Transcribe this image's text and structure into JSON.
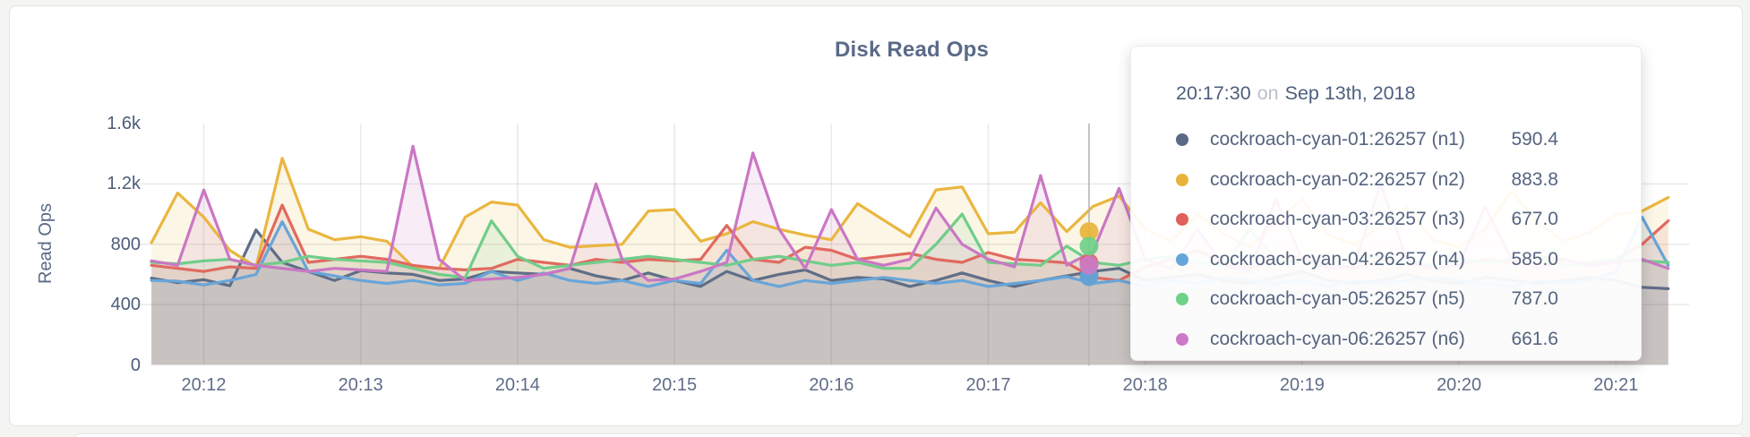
{
  "page": {
    "background": "#f4f4f2",
    "card_background": "#ffffff"
  },
  "chart_data": {
    "type": "line",
    "title": "Disk Read Ops",
    "xlabel": "",
    "ylabel": "Read Ops",
    "ylim": [
      0,
      1600
    ],
    "grid": true,
    "legend_position": "tooltip-only",
    "x_start": "20:11:40",
    "x_interval_seconds": 10,
    "x_tick_labels": [
      "20:12",
      "20:13",
      "20:14",
      "20:15",
      "20:16",
      "20:17",
      "20:18",
      "20:19",
      "20:20",
      "20:21"
    ],
    "y_ticks": [
      {
        "label": "1.6k",
        "value": 1600
      },
      {
        "label": "1.2k",
        "value": 1200
      },
      {
        "label": "800",
        "value": 800
      },
      {
        "label": "400",
        "value": 400
      },
      {
        "label": "0",
        "value": 0
      }
    ],
    "series": [
      {
        "name": "cockroach-cyan-01:26257 (n1)",
        "color": "#5f6e87",
        "values": [
          575,
          545,
          565,
          525,
          895,
          680,
          620,
          560,
          625,
          610,
          600,
          560,
          570,
          620,
          610,
          600,
          640,
          590,
          560,
          610,
          560,
          520,
          620,
          560,
          600,
          630,
          560,
          580,
          570,
          520,
          560,
          610,
          560,
          520,
          560,
          590.4,
          620,
          640,
          560,
          580,
          600,
          560,
          540,
          580,
          620,
          560,
          540,
          560,
          600,
          560,
          540,
          580,
          560,
          540,
          560,
          580,
          560,
          515,
          505
        ]
      },
      {
        "name": "cockroach-cyan-02:26257 (n2)",
        "color": "#eab63f",
        "values": [
          810,
          1140,
          980,
          760,
          650,
          1370,
          900,
          830,
          850,
          820,
          650,
          640,
          980,
          1080,
          1060,
          830,
          780,
          790,
          800,
          1020,
          1030,
          820,
          870,
          950,
          900,
          860,
          830,
          1070,
          960,
          850,
          1160,
          1180,
          870,
          880,
          1075,
          883.8,
          1050,
          1120,
          900,
          820,
          1000,
          870,
          780,
          950,
          1100,
          860,
          800,
          920,
          1050,
          830,
          780,
          900,
          1150,
          950,
          820,
          880,
          1000,
          1020,
          1110
        ]
      },
      {
        "name": "cockroach-cyan-03:26257 (n3)",
        "color": "#e06a60",
        "values": [
          660,
          640,
          620,
          650,
          640,
          1060,
          680,
          700,
          720,
          700,
          660,
          640,
          630,
          640,
          700,
          680,
          660,
          700,
          680,
          700,
          690,
          700,
          925,
          700,
          680,
          780,
          760,
          700,
          720,
          740,
          700,
          680,
          745,
          700,
          690,
          677,
          580,
          560,
          650,
          700,
          760,
          680,
          640,
          700,
          720,
          660,
          640,
          700,
          680,
          640,
          660,
          700,
          680,
          720,
          700,
          660,
          700,
          800,
          955
        ]
      },
      {
        "name": "cockroach-cyan-04:26257 (n4)",
        "color": "#68a5d9",
        "values": [
          560,
          555,
          530,
          560,
          600,
          950,
          620,
          590,
          560,
          540,
          560,
          530,
          540,
          620,
          560,
          610,
          560,
          540,
          560,
          520,
          560,
          540,
          760,
          560,
          520,
          560,
          540,
          560,
          580,
          560,
          540,
          560,
          520,
          540,
          560,
          585,
          540,
          560,
          520,
          560,
          540,
          580,
          560,
          540,
          560,
          520,
          560,
          540,
          560,
          580,
          560,
          540,
          520,
          560,
          540,
          560,
          620,
          980,
          660
        ]
      },
      {
        "name": "cockroach-cyan-05:26257 (n5)",
        "color": "#70cd8a",
        "values": [
          680,
          670,
          690,
          700,
          660,
          680,
          720,
          700,
          690,
          680,
          640,
          600,
          580,
          955,
          720,
          640,
          660,
          680,
          700,
          720,
          700,
          680,
          660,
          700,
          720,
          690,
          660,
          680,
          640,
          640,
          800,
          1000,
          680,
          670,
          660,
          787,
          680,
          660,
          700,
          720,
          680,
          660,
          900,
          700,
          680,
          660,
          700,
          720,
          680,
          660,
          700,
          680,
          700,
          720,
          660,
          680,
          700,
          690,
          680
        ]
      },
      {
        "name": "cockroach-cyan-06:26257 (n6)",
        "color": "#ca77c4",
        "values": [
          690,
          660,
          1160,
          700,
          660,
          640,
          620,
          640,
          630,
          620,
          1450,
          700,
          560,
          570,
          580,
          600,
          640,
          1200,
          700,
          560,
          570,
          620,
          680,
          1405,
          900,
          640,
          1030,
          700,
          660,
          700,
          1040,
          800,
          700,
          650,
          1255,
          661.6,
          750,
          1170,
          700,
          640,
          900,
          660,
          620,
          1100,
          700,
          640,
          660,
          1200,
          700,
          640,
          660,
          1050,
          700,
          640,
          700,
          660,
          680,
          700,
          640
        ]
      }
    ]
  },
  "tooltip": {
    "time": "20:17:30",
    "on_word": "on",
    "date": "Sep 13th, 2018",
    "rows": [
      {
        "name": "cockroach-cyan-01:26257 (n1)",
        "value": "590.4",
        "color": "#5a6a85"
      },
      {
        "name": "cockroach-cyan-02:26257 (n2)",
        "value": "883.8",
        "color": "#e8b33b"
      },
      {
        "name": "cockroach-cyan-03:26257 (n3)",
        "value": "677.0",
        "color": "#e0615b"
      },
      {
        "name": "cockroach-cyan-04:26257 (n4)",
        "value": "585.0",
        "color": "#64a6d9"
      },
      {
        "name": "cockroach-cyan-05:26257 (n5)",
        "value": "787.0",
        "color": "#6fd088"
      },
      {
        "name": "cockroach-cyan-06:26257 (n6)",
        "value": "661.6",
        "color": "#cc79c8"
      }
    ]
  },
  "colors": {
    "grid_line": "rgba(100,95,80,0.13)",
    "hover_line": "#b6b6b6",
    "title_text": "#5a6a88",
    "axis_text": "#4d5c78",
    "x_axis_text": "#5f6d88",
    "tooltip_text": "#55647f",
    "tooltip_muted": "#bcc0c7"
  }
}
